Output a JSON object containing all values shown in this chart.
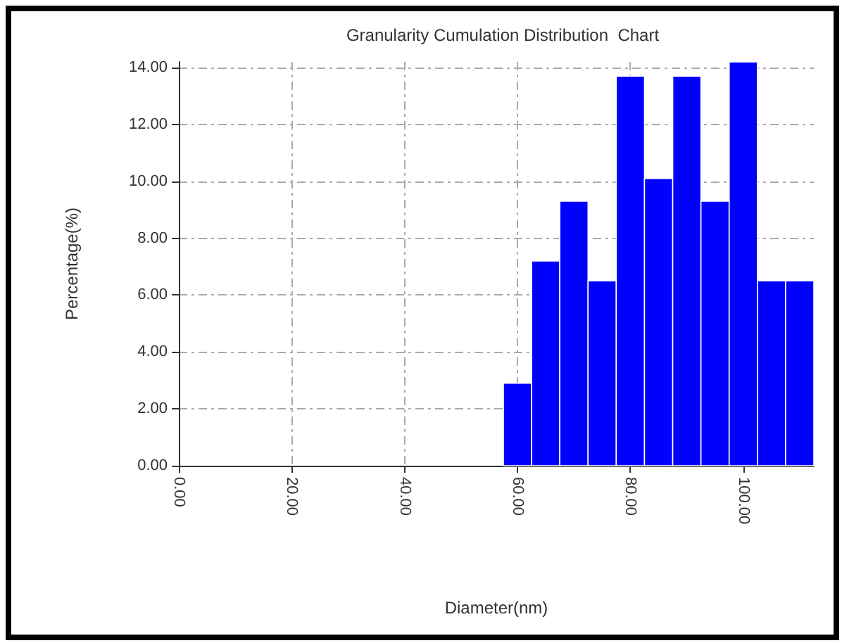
{
  "chart_data": {
    "type": "histogram",
    "title": "Granularity Cumulation Distribution  Chart",
    "xlabel": "Diameter(nm)",
    "ylabel": "Percentage(%)",
    "bins": [
      57.5,
      62.5,
      67.5,
      72.5,
      77.5,
      82.5,
      87.5,
      92.5,
      97.5,
      102.5,
      107.5,
      112.5
    ],
    "values": [
      2.9,
      7.2,
      9.3,
      6.5,
      13.7,
      10.1,
      13.7,
      9.3,
      14.2,
      6.5,
      6.5
    ],
    "color": "#0000ff",
    "xlim": [
      0,
      112.5
    ],
    "xticks": [
      {
        "value": 0,
        "label": "0.00"
      },
      {
        "value": 20,
        "label": "20.00"
      },
      {
        "value": 40,
        "label": "40.00"
      },
      {
        "value": 60,
        "label": "60.00"
      },
      {
        "value": 80,
        "label": "80.00"
      },
      {
        "value": 100,
        "label": "100.00"
      }
    ],
    "ylim": [
      0,
      14.2
    ],
    "yticks": [
      {
        "value": 0,
        "label": "0.00"
      },
      {
        "value": 2,
        "label": "2.00"
      },
      {
        "value": 4,
        "label": "4.00"
      },
      {
        "value": 6,
        "label": "6.00"
      },
      {
        "value": 8,
        "label": "8.00"
      },
      {
        "value": 10,
        "label": "10.00"
      },
      {
        "value": 12,
        "label": "12.00"
      },
      {
        "value": 14,
        "label": "14.00"
      }
    ],
    "grid": true
  }
}
